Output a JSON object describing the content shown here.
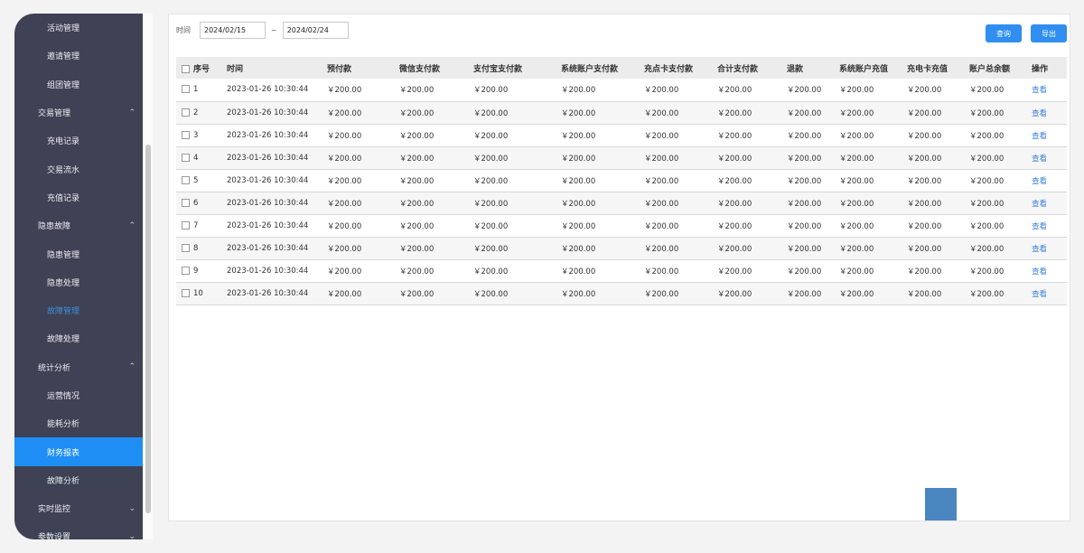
{
  "sidebar": {
    "items": [
      {
        "label": "活动管理",
        "type": "sub"
      },
      {
        "label": "邀请管理",
        "type": "sub"
      },
      {
        "label": "组团管理",
        "type": "sub"
      },
      {
        "label": "交易管理",
        "type": "grp",
        "chevron": "up"
      },
      {
        "label": "充电记录",
        "type": "sub"
      },
      {
        "label": "交易流水",
        "type": "sub"
      },
      {
        "label": "充值记录",
        "type": "sub"
      },
      {
        "label": "隐患故障",
        "type": "grp",
        "chevron": "up"
      },
      {
        "label": "隐患管理",
        "type": "sub"
      },
      {
        "label": "隐患处理",
        "type": "sub"
      },
      {
        "label": "故障管理",
        "type": "sub",
        "highlight": true
      },
      {
        "label": "故障处理",
        "type": "sub"
      },
      {
        "label": "统计分析",
        "type": "grp",
        "chevron": "up"
      },
      {
        "label": "运营情况",
        "type": "sub"
      },
      {
        "label": "能耗分析",
        "type": "sub"
      },
      {
        "label": "财务报表",
        "type": "sub",
        "active": true
      },
      {
        "label": "故障分析",
        "type": "sub"
      },
      {
        "label": "实时监控",
        "type": "grp",
        "chevron": "down"
      },
      {
        "label": "参数设置",
        "type": "grp",
        "chevron": "down"
      }
    ]
  },
  "filter": {
    "label": "时间",
    "start": "2024/02/15",
    "sep": "~",
    "end": "2024/02/24"
  },
  "buttons": {
    "query": "查询",
    "export": "导出"
  },
  "table": {
    "headers": [
      "序号",
      "时间",
      "预付款",
      "微信支付款",
      "支付宝支付款",
      "系统账户支付款",
      "充点卡支付款",
      "合计支付款",
      "退款",
      "系统账户充值",
      "充电卡充值",
      "账户总余额",
      "操作"
    ],
    "rows": [
      [
        "1",
        "2023-01-26 10:30:44",
        "￥200.00",
        "￥200.00",
        "￥200.00",
        "￥200.00",
        "￥200.00",
        "￥200.00",
        "￥200.00",
        "￥200.00",
        "￥200.00",
        "￥200.00",
        "查看"
      ],
      [
        "2",
        "2023-01-26 10:30:44",
        "￥200.00",
        "￥200.00",
        "￥200.00",
        "￥200.00",
        "￥200.00",
        "￥200.00",
        "￥200.00",
        "￥200.00",
        "￥200.00",
        "￥200.00",
        "查看"
      ],
      [
        "3",
        "2023-01-26 10:30:44",
        "￥200.00",
        "￥200.00",
        "￥200.00",
        "￥200.00",
        "￥200.00",
        "￥200.00",
        "￥200.00",
        "￥200.00",
        "￥200.00",
        "￥200.00",
        "查看"
      ],
      [
        "4",
        "2023-01-26 10:30:44",
        "￥200.00",
        "￥200.00",
        "￥200.00",
        "￥200.00",
        "￥200.00",
        "￥200.00",
        "￥200.00",
        "￥200.00",
        "￥200.00",
        "￥200.00",
        "查看"
      ],
      [
        "5",
        "2023-01-26 10:30:44",
        "￥200.00",
        "￥200.00",
        "￥200.00",
        "￥200.00",
        "￥200.00",
        "￥200.00",
        "￥200.00",
        "￥200.00",
        "￥200.00",
        "￥200.00",
        "查看"
      ],
      [
        "6",
        "2023-01-26 10:30:44",
        "￥200.00",
        "￥200.00",
        "￥200.00",
        "￥200.00",
        "￥200.00",
        "￥200.00",
        "￥200.00",
        "￥200.00",
        "￥200.00",
        "￥200.00",
        "查看"
      ],
      [
        "7",
        "2023-01-26 10:30:44",
        "￥200.00",
        "￥200.00",
        "￥200.00",
        "￥200.00",
        "￥200.00",
        "￥200.00",
        "￥200.00",
        "￥200.00",
        "￥200.00",
        "￥200.00",
        "查看"
      ],
      [
        "8",
        "2023-01-26 10:30:44",
        "￥200.00",
        "￥200.00",
        "￥200.00",
        "￥200.00",
        "￥200.00",
        "￥200.00",
        "￥200.00",
        "￥200.00",
        "￥200.00",
        "￥200.00",
        "查看"
      ],
      [
        "9",
        "2023-01-26 10:30:44",
        "￥200.00",
        "￥200.00",
        "￥200.00",
        "￥200.00",
        "￥200.00",
        "￥200.00",
        "￥200.00",
        "￥200.00",
        "￥200.00",
        "￥200.00",
        "查看"
      ],
      [
        "10",
        "2023-01-26 10:30:44",
        "￥200.00",
        "￥200.00",
        "￥200.00",
        "￥200.00",
        "￥200.00",
        "￥200.00",
        "￥200.00",
        "￥200.00",
        "￥200.00",
        "￥200.00",
        "查看"
      ]
    ]
  },
  "colors": {
    "sidebar": "#3f4254",
    "active": "#1e8ef5",
    "button": "#2f8ef0",
    "link": "#3b7fd6"
  }
}
